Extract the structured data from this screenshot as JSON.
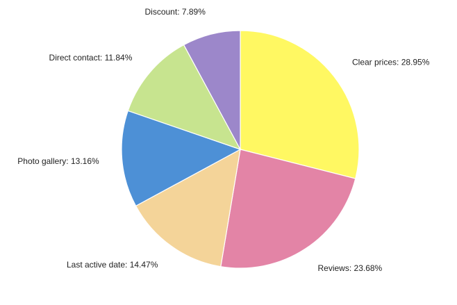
{
  "chart_data": {
    "type": "pie",
    "title": "",
    "slices": [
      {
        "label": "Clear prices",
        "value": 28.95,
        "display": "Clear prices: 28.95%",
        "color": "#fff862"
      },
      {
        "label": "Reviews",
        "value": 23.68,
        "display": "Reviews: 23.68%",
        "color": "#e384a6"
      },
      {
        "label": "Last active date",
        "value": 14.47,
        "display": "Last active date: 14.47%",
        "color": "#f4d499"
      },
      {
        "label": "Photo gallery",
        "value": 13.16,
        "display": "Photo gallery: 13.16%",
        "color": "#4d90d6"
      },
      {
        "label": "Direct contact",
        "value": 11.84,
        "display": "Direct contact: 11.84%",
        "color": "#c7e48f"
      },
      {
        "label": "Discount",
        "value": 7.89,
        "display": "Discount: 7.89%",
        "color": "#9c87ca"
      }
    ],
    "start_angle": "12 o'clock",
    "direction": "clockwise",
    "legend": "none"
  }
}
